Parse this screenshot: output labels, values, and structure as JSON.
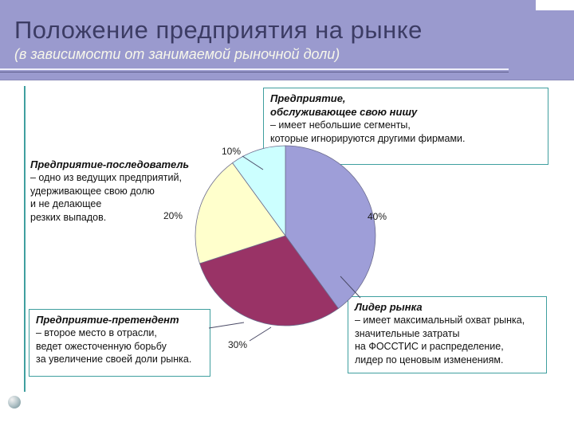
{
  "slide": {
    "title": "Положение предприятия на рынке",
    "subtitle": "(в зависимости от занимаемой рыночной доли)"
  },
  "theme": {
    "banner_color": "#9a9ace",
    "title_color": "#3c3c64",
    "subtitle_color": "#f7f7ea",
    "border_teal": "#3f9f9f",
    "text_color": "#111111"
  },
  "annotations": {
    "niche": {
      "term": "Предприятие,\nобслуживающее свою нишу",
      "text": "– имеет небольшие сегменты,\nкоторые игнорируются другими фирмами."
    },
    "follower": {
      "term": "Предприятие-последователь",
      "text": "– одно из ведущих предприятий,\nудерживающее свою долю\nи не делающее\nрезких выпадов."
    },
    "challenger": {
      "term": "Предприятие-претендент",
      "text": "– второе место в отрасли,\nведет ожесточенную борьбу\nза увеличение своей доли рынка."
    },
    "leader": {
      "term": "Лидер рынка",
      "text": "– имеет максимальный охват рынка,\nзначительные затраты\nна ФОССТИС и распределение,\nлидер по ценовым изменениям."
    }
  },
  "chart_data": {
    "type": "pie",
    "title": "",
    "legend": "none",
    "start_angle_deg": 0,
    "direction": "clockwise",
    "data_labels": "percent, outside with leader lines",
    "slices": [
      {
        "name": "Лидер рынка",
        "value": 40,
        "pct_label": "40%",
        "color": "#9e9ed8"
      },
      {
        "name": "Предприятие-претендент",
        "value": 30,
        "pct_label": "30%",
        "color": "#993366"
      },
      {
        "name": "Предприятие-последователь",
        "value": 20,
        "pct_label": "20%",
        "color": "#ffffcc"
      },
      {
        "name": "Предприятие, обслуживающее свою нишу",
        "value": 10,
        "pct_label": "10%",
        "color": "#ccffff"
      }
    ]
  }
}
